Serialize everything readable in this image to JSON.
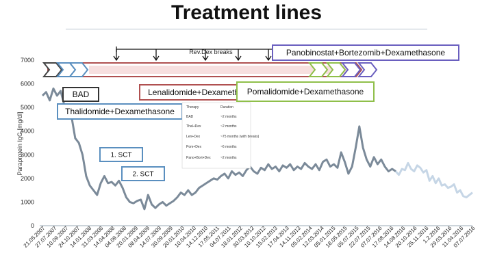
{
  "page": {
    "title": "Treatment lines"
  },
  "chart_data": {
    "type": "line",
    "ylabel": "Paraprotein IgG [mg/dl]",
    "xlabel": "",
    "ylim": [
      0,
      7000
    ],
    "yticks": [
      0,
      1000,
      2000,
      3000,
      4000,
      5000,
      6000,
      7000
    ],
    "grid": false,
    "x_tick_labels": [
      "21.05.2007",
      "27.07.2007",
      "10.09.2007",
      "24.10.2007",
      "14.01.2008",
      "31.03.2008",
      "14.04.2008",
      "04.09.2008",
      "20.01.2009",
      "08.04.2009",
      "14.07.2009",
      "30.09.2009",
      "20.01.2010",
      "10.04.2010",
      "14.12.2010",
      "17.05.2011",
      "04.07.2011",
      "18.01.2012",
      "30.03.2012",
      "10.10.2012",
      "15.02.2013",
      "17.04.2013",
      "14.11.2013",
      "05.02.2014",
      "12.03.2014",
      "05.01.2015",
      "18.05.2015",
      "05.07.2015",
      "22.07.2015",
      "07.07.2016",
      "17.08.2016",
      "14.08.2016",
      "20.10.2016",
      "25.11.2016",
      "1.2.2016",
      "29.03.2016",
      "11.04.2016",
      "07.07.2016"
    ],
    "series": [
      {
        "style": "solid",
        "color": "#7b8a99",
        "values": [
          5500,
          5650,
          5300,
          5800,
          5500,
          5700,
          5100,
          4900,
          4600,
          3700,
          3500,
          3000,
          2100,
          1700,
          1500,
          1300,
          1800,
          2100,
          1800,
          1850,
          1700,
          1900,
          1600,
          1200,
          1000,
          950,
          1050,
          1100,
          700,
          1300,
          900,
          750,
          900,
          1000,
          850,
          950,
          1050,
          1200,
          1400,
          1300,
          1500,
          1300,
          1400,
          1600,
          1700,
          1800,
          1900,
          2000,
          1950,
          2100,
          2200,
          2000,
          2300,
          2150,
          2250,
          2100,
          2350,
          2500,
          2300,
          2200,
          2450,
          2350,
          2600,
          2400,
          2500,
          2300,
          2550,
          2450,
          2600,
          2350,
          2500,
          2400,
          2650,
          2500,
          2400,
          2600,
          2350,
          2700,
          2800,
          2500,
          2600,
          2450,
          3100,
          2700,
          2200,
          2500,
          3300,
          4200,
          3300,
          2800,
          2500,
          2900,
          2600,
          2800,
          2500,
          2300,
          2400,
          2300
        ]
      },
      {
        "style": "faded",
        "color": "#c6d6e6",
        "values": [
          2300,
          2150,
          2400,
          2350,
          2650,
          2400,
          2300,
          2550,
          2450,
          2250,
          2350,
          1900,
          2100,
          1800,
          2000,
          1700,
          1750,
          1600,
          1650,
          1750,
          1400,
          1500,
          1250,
          1200,
          1300,
          1400
        ]
      }
    ],
    "annotations": {
      "bracket_label": "Rev.Dex breaks",
      "lines": [
        "BAD",
        "Thalidomide+Dexamethasone",
        "Lenalidomide+Dexamethasone",
        "Pomalidomide+Dexamethasone",
        "Panobinostat+Bortezomib+Dexamethasone"
      ],
      "events": [
        "1. SCT",
        "2. SCT"
      ]
    },
    "inset_table": {
      "headers": [
        "Therapy",
        "Duration"
      ],
      "rows": [
        [
          "BAD",
          "~2 months"
        ],
        [
          "Thal+Dex",
          "~2 months"
        ],
        [
          "Len+Dex",
          "~75 months (with breaks)"
        ],
        [
          "Pom+Dex",
          "~6 months"
        ],
        [
          "Pano+Bort+Dex",
          "~2 months"
        ]
      ]
    }
  }
}
